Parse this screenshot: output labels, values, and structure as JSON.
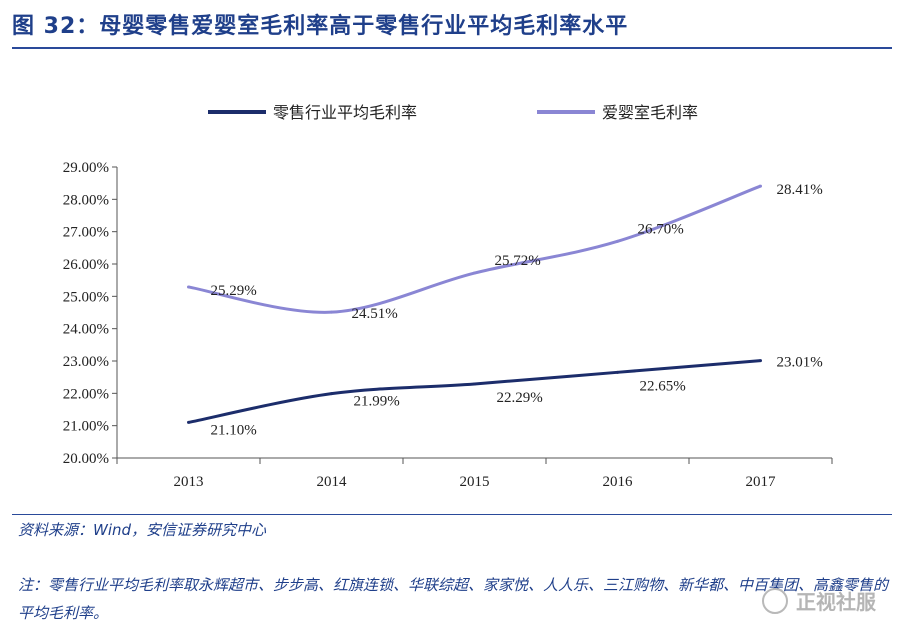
{
  "title": "图 32：母婴零售爱婴室毛利率高于零售行业平均毛利率水平",
  "chart_data": {
    "type": "line",
    "x": [
      "2013",
      "2014",
      "2015",
      "2016",
      "2017"
    ],
    "series": [
      {
        "name": "零售行业平均毛利率",
        "values": [
          21.1,
          21.99,
          22.29,
          22.65,
          23.01
        ],
        "labels": [
          "21.10%",
          "21.99%",
          "22.29%",
          "22.65%",
          "23.01%"
        ],
        "color": "#1c2d6b"
      },
      {
        "name": "爱婴室毛利率",
        "values": [
          25.29,
          24.51,
          25.72,
          26.7,
          28.41
        ],
        "labels": [
          "25.29%",
          "24.51%",
          "25.72%",
          "26.70%",
          "28.41%"
        ],
        "color": "#8a86d4"
      }
    ],
    "ylim": [
      20,
      29
    ],
    "yticks": [
      "20.00%",
      "21.00%",
      "22.00%",
      "23.00%",
      "24.00%",
      "25.00%",
      "26.00%",
      "27.00%",
      "28.00%",
      "29.00%"
    ],
    "xlabel": "",
    "ylabel": "",
    "legend_position": "top",
    "grid": false
  },
  "source": "资料来源：Wind，安信证券研究中心",
  "note": "注：零售行业平均毛利率取永辉超市、步步高、红旗连锁、华联综超、家家悦、人人乐、三江购物、新华都、中百集团、高鑫零售的平均毛利率。",
  "watermark": "正视社服"
}
